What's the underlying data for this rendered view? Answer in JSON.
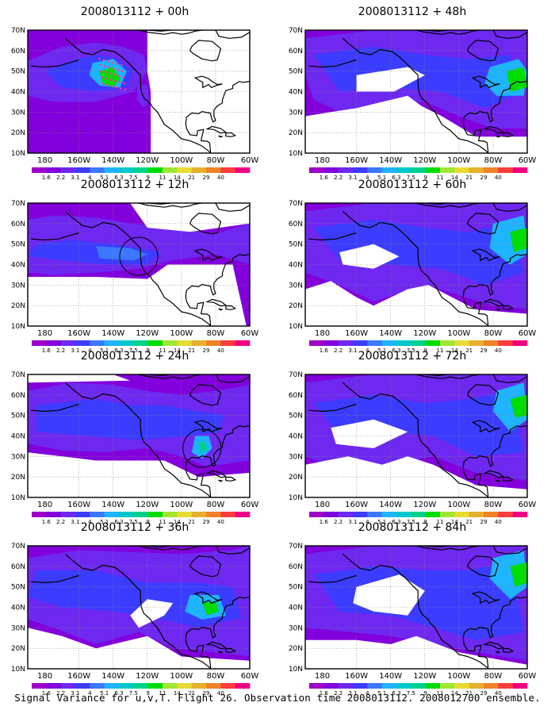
{
  "colorbar": {
    "labels": [
      "1.6",
      "2.2",
      "3.1",
      "4",
      "5.1",
      "6.3",
      "7.5",
      "9",
      "11",
      "14",
      "21",
      "29",
      "40"
    ],
    "colors": [
      "#a000c8",
      "#8200dc",
      "#6e28f0",
      "#3c3cff",
      "#3c78ff",
      "#1eb4ff",
      "#00c8c8",
      "#00d28c",
      "#00dc00",
      "#a0e632",
      "#e6dc32",
      "#e6af2d",
      "#f08228",
      "#fa3c3c",
      "#f00082"
    ]
  },
  "lat_labels": [
    "70N",
    "60N",
    "50N",
    "40N",
    "30N",
    "20N",
    "10N"
  ],
  "lon_labels": [
    "180",
    "160W",
    "140W",
    "120W",
    "100W",
    "80W",
    "60W"
  ],
  "panels": [
    {
      "title": "2008013112 + 00h",
      "col": 0,
      "row": 0,
      "circle": null,
      "dots": true
    },
    {
      "title": "2008013112 + 12h",
      "col": 0,
      "row": 1,
      "circle": [
        -125,
        44
      ],
      "dots": false
    },
    {
      "title": "2008013112 + 24h",
      "col": 0,
      "row": 2,
      "circle": [
        -88,
        34
      ],
      "dots": false
    },
    {
      "title": "2008013112 + 36h",
      "col": 0,
      "row": 3,
      "circle": null,
      "dots": false
    },
    {
      "title": "2008013112 + 48h",
      "col": 1,
      "row": 0,
      "circle": null,
      "dots": false
    },
    {
      "title": "2008013112 + 60h",
      "col": 1,
      "row": 1,
      "circle": null,
      "dots": false
    },
    {
      "title": "2008013112 + 72h",
      "col": 1,
      "row": 2,
      "circle": null,
      "dots": false
    },
    {
      "title": "2008013112 + 84h",
      "col": 1,
      "row": 3,
      "circle": null,
      "dots": false
    }
  ],
  "caption": "Signal Variance for u,v,T. Flight 26. Observation time 2008013112. 2008012700 ensemble."
}
